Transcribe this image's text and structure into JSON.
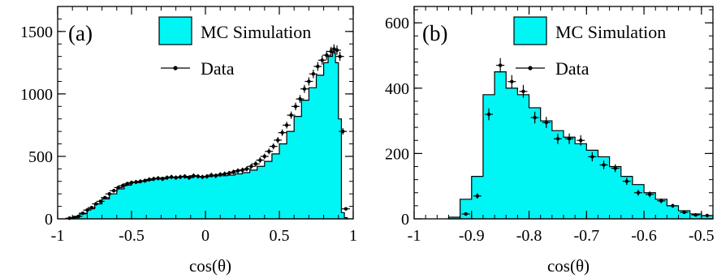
{
  "chart_data": [
    {
      "type": "histogram",
      "panel_label": "(a)",
      "xlabel": "cos(θ)",
      "ylabel": "",
      "xlim": [
        -1,
        1
      ],
      "ylim": [
        0,
        1700
      ],
      "x_ticks": [
        -1,
        -0.5,
        0,
        0.5,
        1
      ],
      "x_tick_labels": [
        "-1",
        "-0.5",
        "0",
        "0.5",
        "1"
      ],
      "y_ticks": [
        0,
        500,
        1000,
        1500
      ],
      "y_tick_labels": [
        "0",
        "500",
        "1000",
        "1500"
      ],
      "legend": {
        "position": "top-right",
        "entries": [
          "MC Simulation",
          "Data"
        ]
      },
      "colors": {
        "fill": "#00f5f5",
        "line": "#000000"
      },
      "series": [
        {
          "name": "MC Simulation",
          "style": "filled-step",
          "bin_edges": [
            -0.92,
            -0.9,
            -0.85,
            -0.8,
            -0.75,
            -0.7,
            -0.65,
            -0.6,
            -0.55,
            -0.5,
            -0.45,
            -0.4,
            -0.35,
            -0.3,
            -0.25,
            -0.2,
            -0.15,
            -0.1,
            -0.05,
            0,
            0.05,
            0.1,
            0.15,
            0.2,
            0.25,
            0.3,
            0.35,
            0.4,
            0.45,
            0.5,
            0.55,
            0.6,
            0.65,
            0.7,
            0.75,
            0.8,
            0.83,
            0.86,
            0.88,
            0.9,
            0.92,
            0.94,
            0.96
          ],
          "values": [
            5,
            15,
            40,
            80,
            120,
            160,
            200,
            240,
            270,
            290,
            300,
            310,
            320,
            330,
            330,
            335,
            335,
            340,
            340,
            340,
            345,
            345,
            350,
            360,
            370,
            390,
            420,
            460,
            520,
            600,
            700,
            820,
            950,
            1050,
            1150,
            1250,
            1300,
            1330,
            1250,
            800,
            50,
            10
          ]
        },
        {
          "name": "Data",
          "style": "points-with-errorbars",
          "x": [
            -0.92,
            -0.89,
            -0.86,
            -0.83,
            -0.8,
            -0.77,
            -0.74,
            -0.71,
            -0.68,
            -0.65,
            -0.62,
            -0.59,
            -0.56,
            -0.53,
            -0.5,
            -0.47,
            -0.44,
            -0.41,
            -0.38,
            -0.35,
            -0.32,
            -0.29,
            -0.26,
            -0.23,
            -0.2,
            -0.17,
            -0.14,
            -0.11,
            -0.08,
            -0.05,
            -0.02,
            0.01,
            0.04,
            0.07,
            0.1,
            0.13,
            0.16,
            0.19,
            0.22,
            0.25,
            0.28,
            0.31,
            0.34,
            0.37,
            0.4,
            0.43,
            0.46,
            0.49,
            0.52,
            0.55,
            0.58,
            0.61,
            0.64,
            0.67,
            0.7,
            0.73,
            0.76,
            0.79,
            0.82,
            0.85,
            0.87,
            0.89,
            0.91,
            0.93,
            0.95
          ],
          "y": [
            5,
            10,
            20,
            45,
            70,
            90,
            120,
            140,
            170,
            200,
            225,
            250,
            265,
            280,
            290,
            295,
            300,
            305,
            315,
            320,
            325,
            320,
            330,
            335,
            330,
            335,
            340,
            330,
            345,
            340,
            335,
            340,
            350,
            345,
            355,
            360,
            365,
            375,
            385,
            390,
            400,
            420,
            440,
            470,
            500,
            540,
            580,
            630,
            690,
            750,
            830,
            900,
            960,
            1040,
            1100,
            1160,
            1220,
            1270,
            1310,
            1340,
            1360,
            1350,
            1300,
            700,
            80
          ],
          "yerr": [
            3,
            4,
            5,
            7,
            8,
            10,
            11,
            12,
            13,
            14,
            15,
            16,
            16,
            17,
            17,
            17,
            17,
            17,
            18,
            18,
            18,
            18,
            18,
            18,
            18,
            18,
            18,
            18,
            19,
            18,
            18,
            18,
            19,
            19,
            19,
            19,
            19,
            19,
            20,
            20,
            20,
            20,
            21,
            22,
            22,
            23,
            24,
            25,
            26,
            27,
            29,
            30,
            31,
            32,
            33,
            34,
            35,
            36,
            36,
            37,
            37,
            37,
            36,
            26,
            9
          ]
        }
      ]
    },
    {
      "type": "histogram",
      "panel_label": "(b)",
      "xlabel": "cos(θ)",
      "ylabel": "",
      "xlim": [
        -1,
        -0.48
      ],
      "ylim": [
        0,
        650
      ],
      "x_ticks": [
        -1,
        -0.9,
        -0.8,
        -0.7,
        -0.6,
        -0.5
      ],
      "x_tick_labels": [
        "-1",
        "-0.9",
        "-0.8",
        "-0.7",
        "-0.6",
        "-0.5"
      ],
      "y_ticks": [
        0,
        200,
        400,
        600
      ],
      "y_tick_labels": [
        "0",
        "200",
        "400",
        "600"
      ],
      "legend": {
        "position": "top-right",
        "entries": [
          "MC Simulation",
          "Data"
        ]
      },
      "colors": {
        "fill": "#00f5f5",
        "line": "#000000"
      },
      "series": [
        {
          "name": "MC Simulation",
          "style": "filled-step",
          "bin_edges": [
            -0.94,
            -0.92,
            -0.9,
            -0.88,
            -0.86,
            -0.84,
            -0.82,
            -0.8,
            -0.78,
            -0.76,
            -0.74,
            -0.72,
            -0.7,
            -0.68,
            -0.66,
            -0.64,
            -0.62,
            -0.6,
            -0.58,
            -0.56,
            -0.54,
            -0.52,
            -0.5,
            -0.48
          ],
          "values": [
            5,
            60,
            130,
            380,
            450,
            400,
            380,
            340,
            300,
            270,
            250,
            230,
            210,
            190,
            160,
            130,
            105,
            80,
            60,
            40,
            25,
            15,
            10
          ]
        },
        {
          "name": "Data",
          "style": "points-with-errorbars",
          "x": [
            -0.91,
            -0.89,
            -0.87,
            -0.85,
            -0.83,
            -0.81,
            -0.79,
            -0.77,
            -0.75,
            -0.73,
            -0.71,
            -0.69,
            -0.67,
            -0.65,
            -0.63,
            -0.61,
            -0.59,
            -0.57,
            -0.55,
            -0.53,
            -0.51,
            -0.49
          ],
          "y": [
            15,
            70,
            320,
            470,
            420,
            390,
            310,
            295,
            245,
            245,
            240,
            190,
            165,
            155,
            115,
            80,
            75,
            55,
            40,
            20,
            12,
            10
          ],
          "yerr": [
            4,
            8,
            18,
            22,
            20,
            20,
            18,
            17,
            16,
            16,
            16,
            14,
            13,
            12,
            11,
            9,
            9,
            7,
            6,
            4,
            3,
            3
          ]
        }
      ]
    }
  ]
}
